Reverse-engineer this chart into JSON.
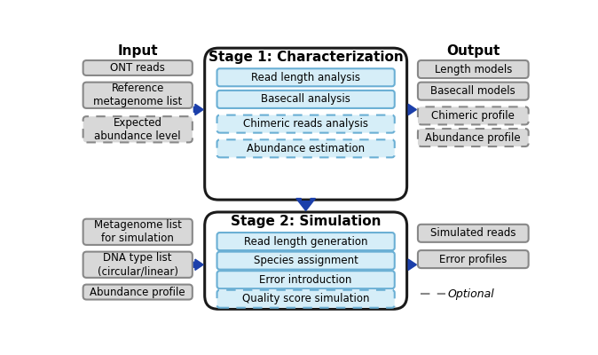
{
  "bg_color": "#ffffff",
  "stage1_title": "Stage 1: Characterization",
  "stage2_title": "Stage 2: Simulation",
  "input_title": "Input",
  "output_title": "Output",
  "stage1_items": [
    [
      "Read length analysis",
      false
    ],
    [
      "Basecall analysis",
      false
    ],
    [
      "Chimeric reads analysis",
      true
    ],
    [
      "Abundance estimation",
      true
    ]
  ],
  "stage2_items": [
    [
      "Read length generation",
      false
    ],
    [
      "Species assignment",
      false
    ],
    [
      "Error introduction",
      false
    ],
    [
      "Quality score simulation",
      true
    ]
  ],
  "input_top": [
    [
      "ONT reads",
      false
    ],
    [
      "Reference\nmetagenome list",
      false
    ],
    [
      "Expected\nabundance level",
      true
    ]
  ],
  "input_bot": [
    [
      "Metagenome list\nfor simulation",
      false
    ],
    [
      "DNA type list\n(circular/linear)",
      false
    ],
    [
      "Abundance profile",
      false
    ]
  ],
  "output_top": [
    [
      "Length models",
      false
    ],
    [
      "Basecall models",
      false
    ],
    [
      "Chimeric profile",
      true
    ],
    [
      "Abundance profile",
      true
    ]
  ],
  "output_bot": [
    [
      "Simulated reads",
      false
    ],
    [
      "Error profiles",
      false
    ]
  ],
  "optional_text": "Optional",
  "arrow_color": "#1b3faa",
  "box_blue": "#d6eef8",
  "box_gray": "#d8d8d8",
  "border_gray": "#888888",
  "border_black": "#1a1a1a"
}
